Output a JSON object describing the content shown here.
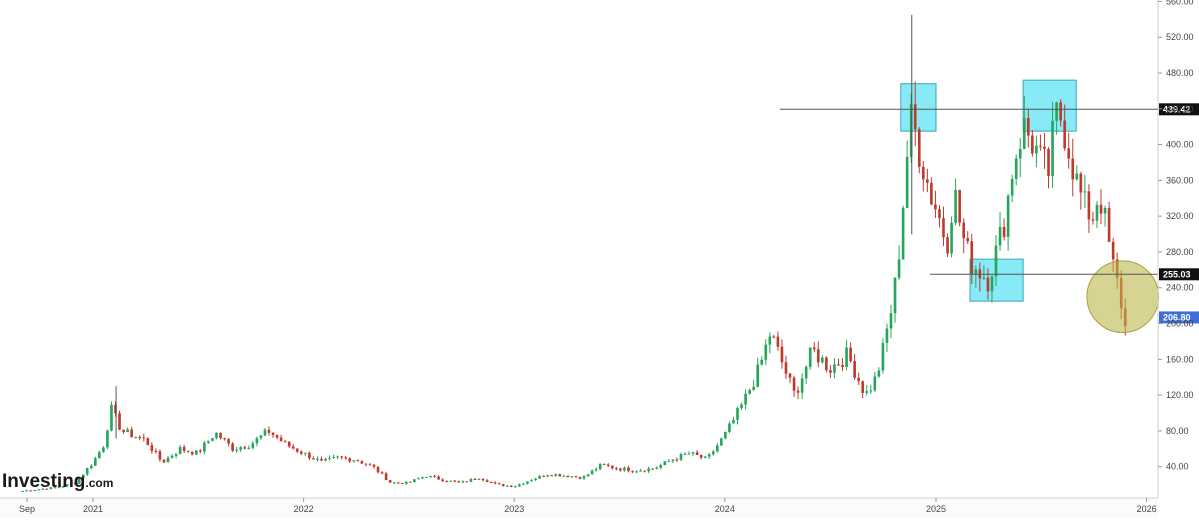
{
  "brand": {
    "name": "Investing",
    "suffix": ".com"
  },
  "colors": {
    "up": "#26a65b",
    "down": "#c0392b",
    "price_badge": "#3d6fd9",
    "level_badge": "#111111",
    "highlight_box": "#5fe3f3",
    "highlight_circle": "#bcb54a",
    "axis_text": "#444444",
    "grid": "#e8e8e8"
  },
  "price_axis": {
    "ticks": [
      "40.00",
      "80.00",
      "120.00",
      "160.00",
      "200.00",
      "240.00",
      "280.00",
      "320.00",
      "360.00",
      "400.00",
      "440.00",
      "480.00",
      "520.00",
      "560.00"
    ],
    "current_price": "206.80",
    "level_labels": [
      "439.42",
      "255.03"
    ]
  },
  "time_axis": {
    "labels": [
      "Sep",
      "2021",
      "2022",
      "2023",
      "2024",
      "2025",
      "2026"
    ]
  },
  "chart_data": {
    "type": "candlestick",
    "title": "",
    "xlabel": "",
    "ylabel": "",
    "ylim": [
      0,
      560
    ],
    "x_range": [
      "2020-09",
      "2026-01"
    ],
    "current_price": 206.8,
    "horizontal_levels": [
      {
        "value": 439.42,
        "label": "439.42"
      },
      {
        "value": 255.03,
        "label": "255.03"
      }
    ],
    "highlight_boxes": [
      {
        "from": "2024-11",
        "to": "2025-01",
        "ymin": 415,
        "ymax": 468
      },
      {
        "from": "2025-03",
        "to": "2025-06",
        "ymin": 225,
        "ymax": 272
      },
      {
        "from": "2025-06",
        "to": "2025-09",
        "ymin": 415,
        "ymax": 472
      }
    ],
    "highlight_circles": [
      {
        "center": "2025-12",
        "ymin": 190,
        "ymax": 270
      }
    ],
    "weekly_close_path": [
      [
        "2020-09",
        13
      ],
      [
        "2020-11",
        17
      ],
      [
        "2020-12",
        22
      ],
      [
        "2021-01",
        45
      ],
      [
        "2021-01-20",
        65
      ],
      [
        "2021-02",
        105
      ],
      [
        "2021-02-20",
        80
      ],
      [
        "2021-04",
        70
      ],
      [
        "2021-05",
        45
      ],
      [
        "2021-06",
        60
      ],
      [
        "2021-07",
        55
      ],
      [
        "2021-08",
        78
      ],
      [
        "2021-09",
        60
      ],
      [
        "2021-10",
        65
      ],
      [
        "2021-11",
        80
      ],
      [
        "2021-12",
        65
      ],
      [
        "2022-01",
        55
      ],
      [
        "2022-02",
        45
      ],
      [
        "2022-03",
        50
      ],
      [
        "2022-04",
        48
      ],
      [
        "2022-05",
        40
      ],
      [
        "2022-06",
        22
      ],
      [
        "2022-07",
        22
      ],
      [
        "2022-08",
        30
      ],
      [
        "2022-09",
        25
      ],
      [
        "2022-10",
        22
      ],
      [
        "2022-11",
        28
      ],
      [
        "2022-12",
        20
      ],
      [
        "2023-01",
        18
      ],
      [
        "2023-02",
        26
      ],
      [
        "2023-03",
        32
      ],
      [
        "2023-04",
        30
      ],
      [
        "2023-05",
        28
      ],
      [
        "2023-06",
        42
      ],
      [
        "2023-07",
        38
      ],
      [
        "2023-08",
        36
      ],
      [
        "2023-09",
        38
      ],
      [
        "2023-10",
        48
      ],
      [
        "2023-11",
        55
      ],
      [
        "2023-12",
        48
      ],
      [
        "2024-01",
        75
      ],
      [
        "2024-02",
        110
      ],
      [
        "2024-03",
        150
      ],
      [
        "2024-03-20",
        190
      ],
      [
        "2024-04",
        170
      ],
      [
        "2024-05",
        120
      ],
      [
        "2024-06",
        170
      ],
      [
        "2024-07",
        150
      ],
      [
        "2024-08",
        165
      ],
      [
        "2024-09",
        120
      ],
      [
        "2024-09-20",
        140
      ],
      [
        "2024-10",
        170
      ],
      [
        "2024-10-20",
        230
      ],
      [
        "2024-11",
        300
      ],
      [
        "2024-11-10",
        380
      ],
      [
        "2024-11-20",
        430
      ],
      [
        "2024-12",
        400
      ],
      [
        "2024-12-20",
        350
      ],
      [
        "2025-01",
        330
      ],
      [
        "2025-01-20",
        290
      ],
      [
        "2025-02",
        350
      ],
      [
        "2025-02-15",
        300
      ],
      [
        "2025-03",
        270
      ],
      [
        "2025-04",
        250
      ],
      [
        "2025-04-20",
        290
      ],
      [
        "2025-05",
        320
      ],
      [
        "2025-05-15",
        380
      ],
      [
        "2025-06",
        420
      ],
      [
        "2025-06-20",
        400
      ],
      [
        "2025-07",
        380
      ],
      [
        "2025-07-15",
        370
      ],
      [
        "2025-07-25",
        420
      ],
      [
        "2025-08",
        440
      ],
      [
        "2025-08-15",
        410
      ],
      [
        "2025-09",
        360
      ],
      [
        "2025-09-15",
        330
      ],
      [
        "2025-10",
        320
      ],
      [
        "2025-10-10",
        350
      ],
      [
        "2025-10-25",
        300
      ],
      [
        "2025-11",
        270
      ],
      [
        "2025-11-15",
        235
      ],
      [
        "2025-11-25",
        195
      ],
      [
        "2025-12",
        207
      ]
    ],
    "notable_wicks": [
      {
        "date": "2021-02-10",
        "high": 130
      },
      {
        "date": "2024-11-20",
        "high": 545
      }
    ]
  }
}
